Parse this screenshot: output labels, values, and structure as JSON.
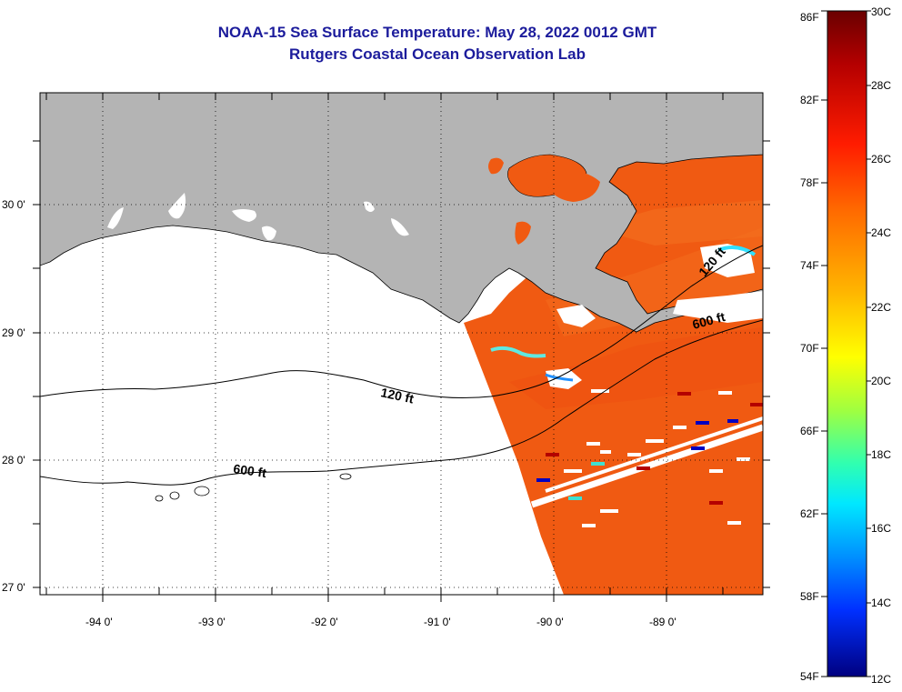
{
  "header": {
    "title": "NOAA-15 Sea Surface Temperature:  May 28, 2022 0012 GMT",
    "subtitle": "Rutgers Coastal Ocean Observation Lab"
  },
  "map": {
    "lat_labels": [
      "30 0'",
      "29 0'",
      "28 0'",
      "27 0'"
    ],
    "lon_labels": [
      "-94 0'",
      "-93 0'",
      "-92 0'",
      "-91 0'",
      "-90 0'",
      "-89 0'"
    ],
    "contours": [
      "120 ft",
      "600 ft"
    ],
    "colors": {
      "land": "#b4b4b4",
      "water_warm": "#f05a10",
      "cloud": "#ffffff"
    }
  },
  "colorbar": {
    "fahrenheit": [
      "86F",
      "82F",
      "78F",
      "74F",
      "70F",
      "66F",
      "62F",
      "58F",
      "54F"
    ],
    "celsius": [
      "30C",
      "28C",
      "26C",
      "24C",
      "22C",
      "20C",
      "18C",
      "16C",
      "14C",
      "12C"
    ]
  }
}
